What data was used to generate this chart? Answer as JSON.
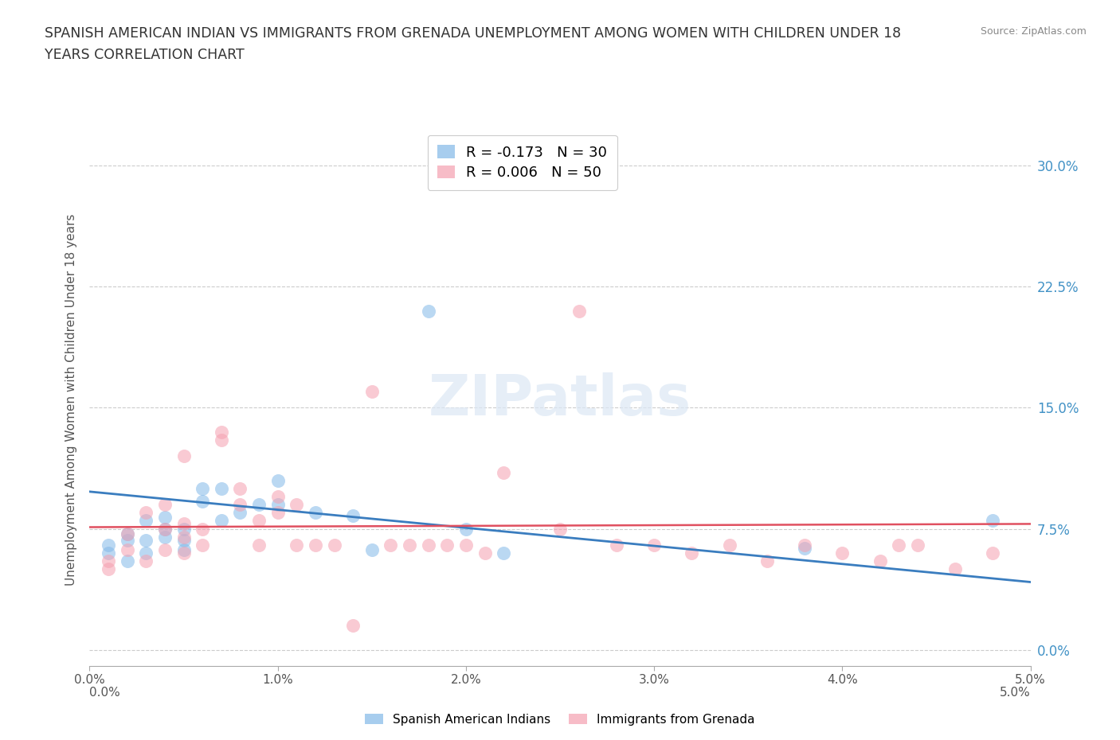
{
  "title": "SPANISH AMERICAN INDIAN VS IMMIGRANTS FROM GRENADA UNEMPLOYMENT AMONG WOMEN WITH CHILDREN UNDER 18\nYEARS CORRELATION CHART",
  "source_text": "Source: ZipAtlas.com",
  "ylabel": "Unemployment Among Women with Children Under 18 years",
  "xlim": [
    0.0,
    0.05
  ],
  "ylim": [
    -0.01,
    0.32
  ],
  "yplot_min": 0.0,
  "yplot_max": 0.3,
  "grid_color": "#cccccc",
  "background_color": "#ffffff",
  "watermark_text": "ZIPatlas",
  "series1_color": "#82b8e8",
  "series2_color": "#f5a0b0",
  "trendline1_color": "#3a7dbf",
  "trendline2_color": "#e05060",
  "series1_label": "Spanish American Indians",
  "series2_label": "Immigrants from Grenada",
  "legend_line1": "R = -0.173   N = 30",
  "legend_line2": "R = 0.006   N = 50",
  "series1_x": [
    0.001,
    0.001,
    0.002,
    0.002,
    0.002,
    0.003,
    0.003,
    0.003,
    0.004,
    0.004,
    0.004,
    0.005,
    0.005,
    0.005,
    0.006,
    0.006,
    0.007,
    0.007,
    0.008,
    0.009,
    0.01,
    0.01,
    0.012,
    0.014,
    0.015,
    0.018,
    0.02,
    0.022,
    0.038,
    0.048
  ],
  "series1_y": [
    0.06,
    0.065,
    0.055,
    0.068,
    0.072,
    0.06,
    0.068,
    0.08,
    0.07,
    0.075,
    0.082,
    0.068,
    0.075,
    0.062,
    0.092,
    0.1,
    0.1,
    0.08,
    0.085,
    0.09,
    0.105,
    0.09,
    0.085,
    0.083,
    0.062,
    0.21,
    0.075,
    0.06,
    0.063,
    0.08
  ],
  "series2_x": [
    0.001,
    0.001,
    0.002,
    0.002,
    0.003,
    0.003,
    0.004,
    0.004,
    0.004,
    0.005,
    0.005,
    0.005,
    0.005,
    0.006,
    0.006,
    0.007,
    0.007,
    0.008,
    0.008,
    0.009,
    0.009,
    0.01,
    0.01,
    0.011,
    0.011,
    0.012,
    0.013,
    0.014,
    0.015,
    0.016,
    0.017,
    0.018,
    0.019,
    0.02,
    0.021,
    0.022,
    0.025,
    0.026,
    0.028,
    0.03,
    0.032,
    0.034,
    0.036,
    0.038,
    0.04,
    0.042,
    0.043,
    0.044,
    0.046,
    0.048
  ],
  "series2_y": [
    0.05,
    0.055,
    0.062,
    0.072,
    0.055,
    0.085,
    0.062,
    0.075,
    0.09,
    0.06,
    0.07,
    0.078,
    0.12,
    0.065,
    0.075,
    0.13,
    0.135,
    0.09,
    0.1,
    0.065,
    0.08,
    0.085,
    0.095,
    0.09,
    0.065,
    0.065,
    0.065,
    0.015,
    0.16,
    0.065,
    0.065,
    0.065,
    0.065,
    0.065,
    0.06,
    0.11,
    0.075,
    0.21,
    0.065,
    0.065,
    0.06,
    0.065,
    0.055,
    0.065,
    0.06,
    0.055,
    0.065,
    0.065,
    0.05,
    0.06
  ],
  "trendline1_x0": 0.0,
  "trendline1_y0": 0.098,
  "trendline1_x1": 0.05,
  "trendline1_y1": 0.042,
  "trendline2_x0": 0.0,
  "trendline2_y0": 0.076,
  "trendline2_x1": 0.05,
  "trendline2_y1": 0.078
}
